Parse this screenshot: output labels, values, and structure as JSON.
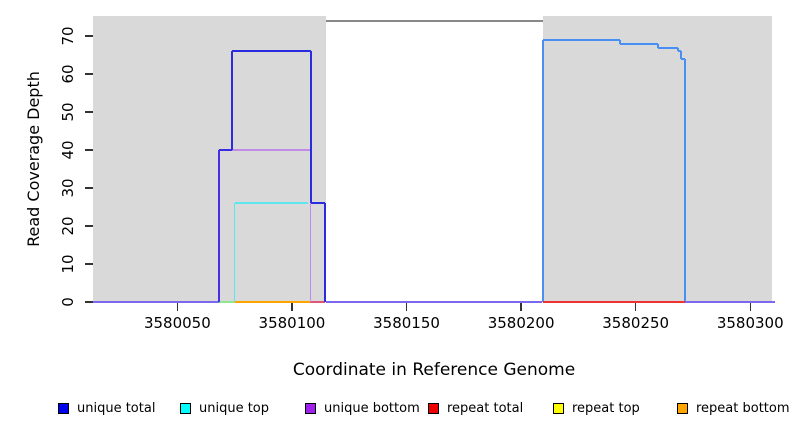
{
  "chart_data": {
    "type": "line",
    "subtype": "step-coverage-plot",
    "title": "",
    "xlabel": "Coordinate in Reference Genome",
    "ylabel": "Read Coverage Depth",
    "xlim": [
      3580011,
      3580310.8
    ],
    "ylim": [
      0,
      75.3
    ],
    "x_ticks": [
      3580050,
      3580100,
      3580150,
      3580200,
      3580250,
      3580300
    ],
    "y_ticks": [
      0,
      10,
      20,
      30,
      40,
      50,
      60,
      70
    ],
    "grid": false,
    "legend_position": "bottom",
    "plot_bg_color": "#d9d9d9",
    "page_bg_color": "#ffffff",
    "tick_color": "#333333",
    "highlight_region": {
      "x1": 3580115,
      "x2": 3580209.5,
      "fill": "#ffffff",
      "top_depth": 74,
      "top_line_color": "#888888"
    },
    "legend": [
      {
        "label": "unique total",
        "color": "#0000ee"
      },
      {
        "label": "unique top",
        "color": "#00ffff"
      },
      {
        "label": "unique bottom",
        "color": "#a020f0"
      },
      {
        "label": "repeat total",
        "color": "#ee0000"
      },
      {
        "label": "repeat top",
        "color": "#ffff00"
      },
      {
        "label": "repeat bottom",
        "color": "#ffa500"
      }
    ],
    "series": [
      {
        "name": "unique total",
        "color": "#0000ee",
        "steps": [
          [
            3580011,
            0
          ],
          [
            3580068,
            40
          ],
          [
            3580074,
            66
          ],
          [
            3580108.5,
            26
          ],
          [
            3580114.3,
            0
          ],
          [
            3580209.5,
            69
          ],
          [
            3580243,
            68
          ],
          [
            3580260,
            67
          ],
          [
            3580269,
            66
          ],
          [
            3580270,
            64
          ],
          [
            3580272,
            0
          ],
          [
            3580310,
            0
          ]
        ]
      },
      {
        "name": "unique top",
        "color": "#00ffff",
        "steps": [
          [
            3580011,
            0
          ],
          [
            3580075,
            26
          ],
          [
            3580107,
            0
          ],
          [
            3580310,
            0
          ]
        ]
      },
      {
        "name": "unique bottom",
        "color": "#a020f0",
        "steps": [
          [
            3580011,
            0
          ],
          [
            3580068,
            40
          ],
          [
            3580108,
            0
          ],
          [
            3580310,
            0
          ]
        ]
      },
      {
        "name": "repeat total",
        "color": "#ee0000",
        "steps": [
          [
            3580011,
            0
          ],
          [
            3580310,
            0
          ]
        ]
      },
      {
        "name": "repeat top",
        "color": "#ffff00",
        "steps": [
          [
            3580011,
            0
          ],
          [
            3580310,
            0
          ]
        ]
      },
      {
        "name": "repeat bottom",
        "color": "#ffa500",
        "steps": [
          [
            3580011,
            0
          ],
          [
            3580310,
            0
          ]
        ]
      }
    ],
    "render_segments": [
      {
        "x1": 3580115,
        "d1": 74,
        "x2": 3580209.5,
        "d2": 74,
        "color": "#888888",
        "w": 2
      },
      {
        "x1": 3580011,
        "d1": 0,
        "x2": 3580068,
        "d2": 0,
        "color": "#7b68ee",
        "w": 2
      },
      {
        "x1": 3580068,
        "d1": 0,
        "x2": 3580075,
        "d2": 0,
        "color": "#8fe88f",
        "w": 2
      },
      {
        "x1": 3580075,
        "d1": 0,
        "x2": 3580108,
        "d2": 0,
        "color": "#ffa500",
        "w": 2
      },
      {
        "x1": 3580108,
        "d1": 0,
        "x2": 3580114.3,
        "d2": 0,
        "color": "#e05578",
        "w": 2
      },
      {
        "x1": 3580115,
        "d1": 0,
        "x2": 3580209,
        "d2": 0,
        "color": "#7b68ee",
        "w": 2
      },
      {
        "x1": 3580068,
        "d1": 0,
        "x2": 3580068,
        "d2": 40,
        "color": "#4b2be6",
        "w": 2
      },
      {
        "x1": 3580068,
        "d1": 40,
        "x2": 3580074,
        "d2": 40,
        "color": "#3a2be0",
        "w": 2
      },
      {
        "x1": 3580074,
        "d1": 40,
        "x2": 3580108,
        "d2": 40,
        "color": "#c08ce8",
        "w": 1.5
      },
      {
        "x1": 3580108,
        "d1": 0,
        "x2": 3580108,
        "d2": 40,
        "color": "#c08ce8",
        "w": 1.5
      },
      {
        "x1": 3580075,
        "d1": 0,
        "x2": 3580075,
        "d2": 26,
        "color": "#5ce6ee",
        "w": 1.5
      },
      {
        "x1": 3580075,
        "d1": 26,
        "x2": 3580107,
        "d2": 26,
        "color": "#5ce6ee",
        "w": 1.5
      },
      {
        "x1": 3580074,
        "d1": 40,
        "x2": 3580074,
        "d2": 66,
        "color": "#2b2be0",
        "w": 2
      },
      {
        "x1": 3580074,
        "d1": 66,
        "x2": 3580108.5,
        "d2": 66,
        "color": "#2b2be0",
        "w": 2
      },
      {
        "x1": 3580108.5,
        "d1": 26,
        "x2": 3580108.5,
        "d2": 66,
        "color": "#2b2be0",
        "w": 2
      },
      {
        "x1": 3580108.5,
        "d1": 26,
        "x2": 3580114.3,
        "d2": 26,
        "color": "#2b2be0",
        "w": 2
      },
      {
        "x1": 3580114.3,
        "d1": 0,
        "x2": 3580114.3,
        "d2": 26,
        "color": "#2b2be0",
        "w": 2
      },
      {
        "x1": 3580209.5,
        "d1": 0,
        "x2": 3580209.5,
        "d2": 69,
        "color": "#478ff2",
        "w": 2
      },
      {
        "x1": 3580209.5,
        "d1": 69,
        "x2": 3580243.3,
        "d2": 69,
        "color": "#478ff2",
        "w": 2
      },
      {
        "x1": 3580243.3,
        "d1": 68,
        "x2": 3580243.3,
        "d2": 69,
        "color": "#478ff2",
        "w": 2
      },
      {
        "x1": 3580243.3,
        "d1": 68,
        "x2": 3580259.9,
        "d2": 68,
        "color": "#478ff2",
        "w": 2
      },
      {
        "x1": 3580259.9,
        "d1": 67,
        "x2": 3580259.9,
        "d2": 68,
        "color": "#478ff2",
        "w": 2
      },
      {
        "x1": 3580259.9,
        "d1": 67,
        "x2": 3580268.6,
        "d2": 67,
        "color": "#478ff2",
        "w": 2
      },
      {
        "x1": 3580268.6,
        "d1": 66,
        "x2": 3580268.6,
        "d2": 67,
        "color": "#478ff2",
        "w": 2
      },
      {
        "x1": 3580268.6,
        "d1": 66,
        "x2": 3580269.9,
        "d2": 66,
        "color": "#478ff2",
        "w": 2
      },
      {
        "x1": 3580269.9,
        "d1": 64,
        "x2": 3580269.9,
        "d2": 66,
        "color": "#478ff2",
        "w": 2
      },
      {
        "x1": 3580269.9,
        "d1": 64,
        "x2": 3580271.6,
        "d2": 64,
        "color": "#478ff2",
        "w": 2
      },
      {
        "x1": 3580271.6,
        "d1": 0,
        "x2": 3580271.6,
        "d2": 64,
        "color": "#478ff2",
        "w": 2
      },
      {
        "x1": 3580209.5,
        "d1": 0,
        "x2": 3580271.6,
        "d2": 0,
        "color": "#f03131",
        "w": 2
      },
      {
        "x1": 3580271.6,
        "d1": 0,
        "x2": 3580310.8,
        "d2": 0,
        "color": "#7b68ee",
        "w": 2
      }
    ]
  }
}
